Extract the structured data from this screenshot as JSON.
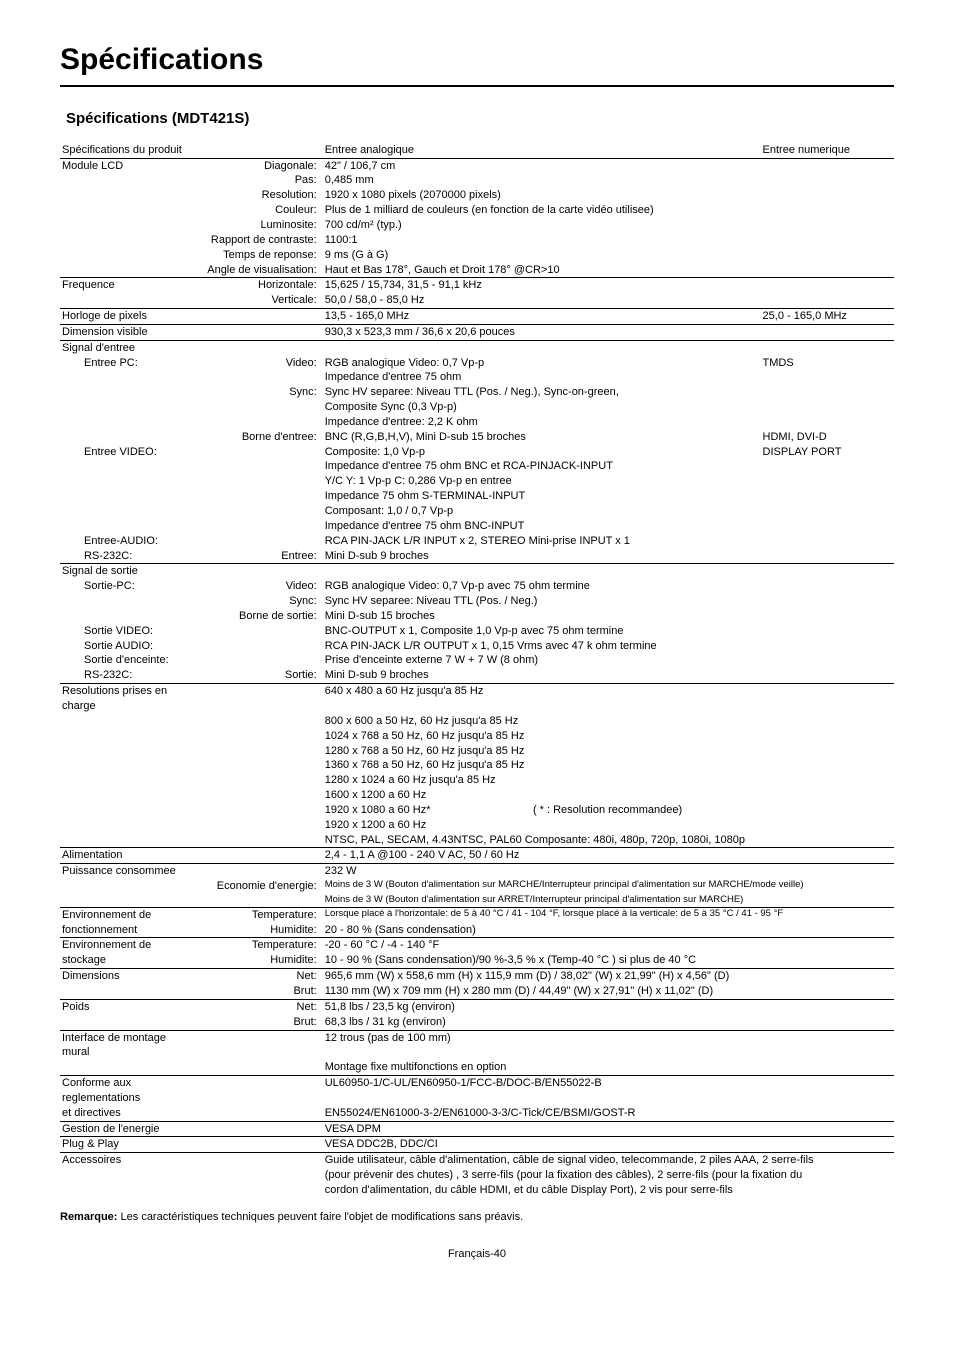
{
  "page_title": "Spécifications",
  "subtitle": "Spécifications (MDT421S)",
  "header_row": {
    "c1": "Spécifications du produit",
    "c3": "Entree analogique",
    "c4": "Entree numerique"
  },
  "rows": [
    {
      "c1": "Module LCD",
      "c2": "Diagonale:",
      "c3": "42\" / 106,7 cm",
      "rule": true
    },
    {
      "c2": "Pas:",
      "c3": "0,485 mm"
    },
    {
      "c2": "Resolution:",
      "c3": "1920 x 1080 pixels (2070000 pixels)"
    },
    {
      "c2": "Couleur:",
      "c3": "Plus de 1 milliard de couleurs (en fonction de la carte vidéo utilisee)"
    },
    {
      "c2": "Luminosite:",
      "c3": "700 cd/m² (typ.)"
    },
    {
      "c2": "Rapport de contraste:",
      "c3": "1100:1"
    },
    {
      "c2": "Temps de reponse:",
      "c3": "9 ms (G à G)"
    },
    {
      "c2": "Angle de visualisation:",
      "c3": "Haut et Bas 178°, Gauch et Droit 178° @CR>10"
    },
    {
      "c1": "Frequence",
      "c2": "Horizontale:",
      "c3": "15,625 / 15,734, 31,5 - 91,1 kHz",
      "rule": true
    },
    {
      "c2": "Verticale:",
      "c3": "50,0 / 58,0 - 85,0 Hz"
    },
    {
      "c1": "Horloge de pixels",
      "c3": "13,5 - 165,0 MHz",
      "c4": "25,0 - 165,0 MHz",
      "rule": true
    },
    {
      "c1": "Dimension visible",
      "c3": "930,3 x 523,3 mm / 36,6 x 20,6 pouces",
      "rule": true
    },
    {
      "c1": "Signal d'entree",
      "rule": true
    },
    {
      "c1sub": "Entree PC:",
      "c2": "Video:",
      "c3": "RGB analogique Video: 0,7 Vp-p",
      "c4": "TMDS"
    },
    {
      "c3": "Impedance d'entree 75 ohm"
    },
    {
      "c2": "Sync:",
      "c3": "Sync HV separee: Niveau TTL (Pos. / Neg.), Sync-on-green,"
    },
    {
      "c3": "Composite Sync (0,3 Vp-p)"
    },
    {
      "c3": "Impedance d'entree: 2,2 K ohm"
    },
    {
      "c2": "Borne d'entree:",
      "c3": "BNC (R,G,B,H,V), Mini D-sub 15 broches",
      "c4": "HDMI, DVI-D"
    },
    {
      "c1sub": "Entree VIDEO:",
      "c3": "Composite: 1,0 Vp-p",
      "c4": "DISPLAY PORT"
    },
    {
      "c3": "Impedance d'entree 75 ohm BNC et RCA-PINJACK-INPUT"
    },
    {
      "c3": "Y/C Y: 1 Vp-p C: 0,286 Vp-p en entree"
    },
    {
      "c3": "Impedance 75 ohm S-TERMINAL-INPUT"
    },
    {
      "c3": "Composant: 1,0 / 0,7 Vp-p"
    },
    {
      "c3": "Impedance d'entree 75 ohm BNC-INPUT"
    },
    {
      "c1sub": "Entree-AUDIO:",
      "c3": "RCA PIN-JACK L/R INPUT x 2, STEREO Mini-prise INPUT x 1"
    },
    {
      "c1sub": "RS-232C:",
      "c2": "Entree:",
      "c3": "Mini D-sub 9 broches"
    },
    {
      "c1": "Signal de sortie",
      "rule": true
    },
    {
      "c1sub": "Sortie-PC:",
      "c2": "Video:",
      "c3": "RGB analogique Video: 0,7 Vp-p avec 75 ohm termine"
    },
    {
      "c2": "Sync:",
      "c3": "Sync HV separee: Niveau TTL (Pos. / Neg.)"
    },
    {
      "c2": "Borne de sortie:",
      "c3": "Mini D-sub 15 broches"
    },
    {
      "c1sub": "Sortie VIDEO:",
      "c3": "BNC-OUTPUT x 1, Composite 1,0 Vp-p avec 75 ohm termine"
    },
    {
      "c1sub": "Sortie AUDIO:",
      "c3": "RCA PIN-JACK L/R OUTPUT x 1, 0,15 Vrms avec 47 k ohm termine"
    },
    {
      "c1sub": "Sortie d'enceinte:",
      "c3": "Prise d'enceinte externe 7 W + 7 W (8 ohm)"
    },
    {
      "c1sub": "RS-232C:",
      "c2": "Sortie:",
      "c3": "Mini D-sub 9 broches"
    },
    {
      "c1": "Resolutions prises en charge",
      "c3": "640 x 480 a 60 Hz jusqu'a 85 Hz",
      "rule": true
    },
    {
      "c3": "800 x 600 a 50 Hz, 60 Hz jusqu'a 85 Hz"
    },
    {
      "c3": "1024 x 768 a 50 Hz, 60 Hz jusqu'a 85 Hz"
    },
    {
      "c3": "1280 x 768 a 50 Hz, 60 Hz jusqu'a 85 Hz"
    },
    {
      "c3": "1360 x 768 a 50 Hz, 60 Hz jusqu'a 85 Hz"
    },
    {
      "c3": "1280 x 1024 a 60 Hz jusqu'a 85 Hz"
    },
    {
      "c3": "1600 x 1200 a 60 Hz"
    },
    {
      "c3": "1920 x 1080 a 60 Hz*",
      "c3r": "( * : Resolution recommandee)"
    },
    {
      "c3": "1920 x 1200 a 60 Hz"
    },
    {
      "c3": "NTSC, PAL, SECAM, 4.43NTSC, PAL60  Composante: 480i, 480p, 720p, 1080i, 1080p"
    },
    {
      "c1": "Alimentation",
      "c3": "2,4 - 1,1 A @100 - 240 V AC, 50 / 60 Hz",
      "rule": true
    },
    {
      "c1": "Puissance consommee",
      "c3": "232 W",
      "rule": true
    },
    {
      "c2": "Economie d'energie:",
      "c3": "Moins de 3 W (Bouton d'alimentation sur MARCHE/Interrupteur principal d'alimentation sur MARCHE/mode veille)",
      "small": true
    },
    {
      "c3": "Moins de 3 W (Bouton d'alimentation sur ARRET/Interrupteur principal d'alimentation sur MARCHE)",
      "small": true
    },
    {
      "c1": "Environnement de",
      "c2": "Temperature:",
      "c3": "Lorsque placé à l'horizontale: de 5 à 40 °C / 41 - 104 °F, lorsque placé à la verticale: de 5 à 35 °C / 41 - 95 °F",
      "rule": true,
      "small": true
    },
    {
      "c1": "fonctionnement",
      "c2": "Humidite:",
      "c3": "20 - 80 % (Sans condensation)"
    },
    {
      "c1": "Environnement de",
      "c2": "Temperature:",
      "c3": "-20 - 60 °C / -4 - 140 °F",
      "rule": true
    },
    {
      "c1": "stockage",
      "c2": "Humidite:",
      "c3": "10 - 90 % (Sans condensation)/90 %-3,5 % x (Temp-40 °C ) si plus de 40 °C"
    },
    {
      "c1": "Dimensions",
      "c2": "Net:",
      "c3": "965,6 mm (W) x 558,6 mm (H) x 115,9 mm (D) / 38,02\" (W) x 21,99\" (H) x 4,56\" (D)",
      "rule": true
    },
    {
      "c2": "Brut:",
      "c3": "1130 mm (W) x 709 mm (H) x 280 mm (D) / 44,49\" (W) x 27,91\" (H) x 11,02\" (D)"
    },
    {
      "c1": "Poids",
      "c2": "Net:",
      "c3": "51,8 lbs / 23,5 kg (environ)",
      "rule": true
    },
    {
      "c2": "Brut:",
      "c3": "68,3 lbs / 31 kg (environ)"
    },
    {
      "c1": "Interface de montage mural",
      "c3": "12 trous (pas de 100 mm)",
      "rule": true
    },
    {
      "c3": "Montage fixe multifonctions en option"
    },
    {
      "c1": "Conforme aux reglementations",
      "c3": "UL60950-1/C-UL/EN60950-1/FCC-B/DOC-B/EN55022-B",
      "rule": true
    },
    {
      "c1": "et directives",
      "c3": "EN55024/EN61000-3-2/EN61000-3-3/C-Tick/CE/BSMI/GOST-R"
    },
    {
      "c1": "Gestion de l'energie",
      "c3": "VESA DPM",
      "rule": true
    },
    {
      "c1": "Plug & Play",
      "c3": "VESA DDC2B, DDC/CI",
      "rule": true
    },
    {
      "c1": "Accessoires",
      "c3": "Guide utilisateur, câble d'alimentation, câble de signal video, telecommande, 2 piles AAA, 2 serre-fils",
      "rule": true
    },
    {
      "c3": "(pour prévenir des chutes) , 3 serre-fils (pour la fixation des câbles), 2 serre-fils (pour la fixation du"
    },
    {
      "c3": "cordon d'alimentation, du câble HDMI, et du câble Display Port), 2 vis pour serre-fils"
    }
  ],
  "note_label": "Remarque:",
  "note_text": " Les caractéristiques techniques peuvent faire l'objet de modifications sans préavis.",
  "footer": "Français-40"
}
